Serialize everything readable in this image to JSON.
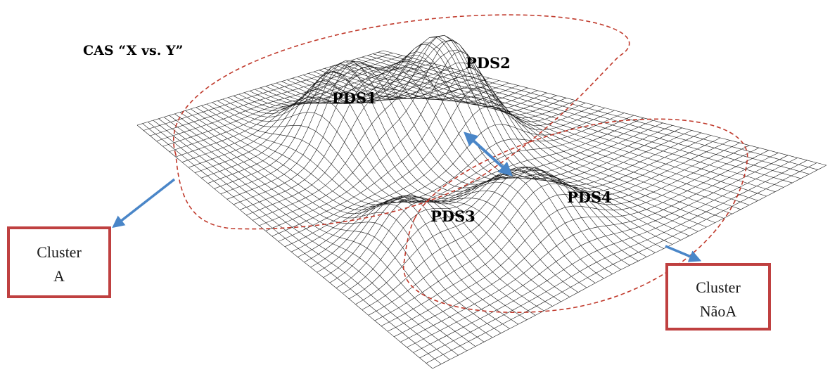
{
  "title": "CAS “X vs. Y”",
  "peaks": [
    {
      "id": "pds1",
      "label": "PDS1"
    },
    {
      "id": "pds2",
      "label": "PDS2"
    },
    {
      "id": "pds3",
      "label": "PDS3"
    },
    {
      "id": "pds4",
      "label": "PDS4"
    }
  ],
  "clusters": [
    {
      "id": "cluster-a",
      "line1": "Cluster",
      "line2": "A"
    },
    {
      "id": "cluster-naoa",
      "line1": "Cluster",
      "line2": "NãoA"
    }
  ],
  "colors": {
    "mesh": "#1a1a1a",
    "cluster_outline": "#c0392b",
    "arrow": "#4a86c8",
    "box_border": "#bf4040"
  }
}
